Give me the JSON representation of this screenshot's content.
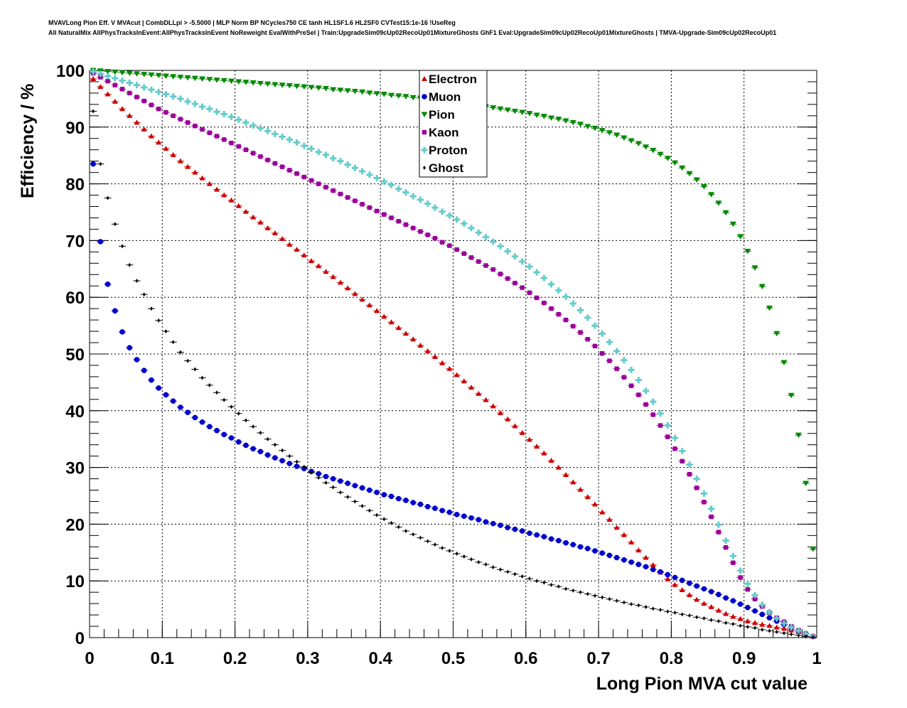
{
  "header": {
    "line1": "MVAVLong Pion Eff. V MVAcut | CombDLLpi > -5.5000 | MLP Norm BP NCycles750 CE tanh HL1SF1.6 HL2SF0 CVTest15:1e-16 !UseReg",
    "line2": "All NaturalMix AllPhysTracksInEvent:AllPhysTracksInEvent NoReweight EvalWithPreSel | Train:UpgradeSim09cUp02RecoUp01MixtureGhosts GhF1 Eval:UpgradeSim09cUp02RecoUp01MixtureGhosts | TMVA-Upgrade-Sim09cUp02RecoUp01"
  },
  "chart_data": {
    "type": "scatter",
    "title": "",
    "xlabel": "Long Pion MVA cut value",
    "ylabel": "Efficiency / %",
    "xlim": [
      0,
      1
    ],
    "ylim": [
      0,
      100
    ],
    "xticks": [
      "0",
      "0.1",
      "0.2",
      "0.3",
      "0.4",
      "0.5",
      "0.6",
      "0.7",
      "0.8",
      "0.9",
      "1"
    ],
    "yticks": [
      "0",
      "10",
      "20",
      "30",
      "40",
      "50",
      "60",
      "70",
      "80",
      "90",
      "100"
    ],
    "grid": true,
    "legend_position": "top-center",
    "x": [
      0.005,
      0.015,
      0.025,
      0.035,
      0.045,
      0.055,
      0.065,
      0.075,
      0.085,
      0.095,
      0.105,
      0.115,
      0.125,
      0.135,
      0.145,
      0.155,
      0.165,
      0.175,
      0.185,
      0.195,
      0.205,
      0.215,
      0.225,
      0.235,
      0.245,
      0.255,
      0.265,
      0.275,
      0.285,
      0.295,
      0.305,
      0.315,
      0.325,
      0.335,
      0.345,
      0.355,
      0.365,
      0.375,
      0.385,
      0.395,
      0.405,
      0.415,
      0.425,
      0.435,
      0.445,
      0.455,
      0.465,
      0.475,
      0.485,
      0.495,
      0.505,
      0.515,
      0.525,
      0.535,
      0.545,
      0.555,
      0.565,
      0.575,
      0.585,
      0.595,
      0.605,
      0.615,
      0.625,
      0.635,
      0.645,
      0.655,
      0.665,
      0.675,
      0.685,
      0.695,
      0.705,
      0.715,
      0.725,
      0.735,
      0.745,
      0.755,
      0.765,
      0.775,
      0.785,
      0.795,
      0.805,
      0.815,
      0.825,
      0.835,
      0.845,
      0.855,
      0.865,
      0.875,
      0.885,
      0.895,
      0.905,
      0.915,
      0.925,
      0.935,
      0.945,
      0.955,
      0.965,
      0.975,
      0.985,
      0.995
    ],
    "series": [
      {
        "name": "Electron",
        "marker": "triangle-up",
        "color": "#cc0000",
        "values": [
          98.5,
          97.1,
          95.8,
          94.5,
          93.2,
          92.0,
          90.8,
          89.6,
          88.4,
          87.3,
          86.2,
          85.1,
          84.0,
          83.0,
          82.0,
          81.0,
          80.0,
          79.0,
          78.0,
          77.1,
          76.1,
          75.1,
          74.1,
          73.2,
          72.2,
          71.3,
          70.3,
          69.3,
          68.4,
          67.4,
          66.4,
          65.5,
          64.5,
          63.6,
          62.6,
          61.6,
          60.6,
          59.6,
          58.6,
          57.6,
          56.6,
          55.6,
          54.6,
          53.6,
          52.6,
          51.5,
          50.5,
          49.5,
          48.4,
          47.4,
          46.3,
          45.2,
          44.1,
          43.0,
          41.9,
          40.8,
          39.6,
          38.5,
          37.3,
          36.1,
          34.9,
          33.7,
          32.5,
          31.2,
          30.0,
          28.7,
          27.4,
          26.1,
          24.8,
          23.5,
          22.1,
          20.8,
          19.4,
          18.1,
          16.8,
          15.4,
          14.1,
          12.8,
          11.5,
          10.3,
          9.3,
          8.4,
          7.5,
          6.7,
          6.0,
          5.4,
          4.8,
          4.2,
          3.7,
          3.3,
          2.9,
          2.6,
          2.3,
          2.1,
          1.8,
          1.6,
          1.3,
          1.0,
          0.6,
          0.2
        ]
      },
      {
        "name": "Muon",
        "marker": "circle",
        "color": "#0000cc",
        "values": [
          83.5,
          69.8,
          62.3,
          57.6,
          53.9,
          51.1,
          49.0,
          47.1,
          45.4,
          44.0,
          42.8,
          41.7,
          40.6,
          39.7,
          38.8,
          38.0,
          37.2,
          36.5,
          35.8,
          35.2,
          34.5,
          33.9,
          33.3,
          32.8,
          32.2,
          31.7,
          31.2,
          30.7,
          30.2,
          29.8,
          29.3,
          28.9,
          28.4,
          28.0,
          27.6,
          27.2,
          26.8,
          26.4,
          26.0,
          25.6,
          25.2,
          24.9,
          24.5,
          24.2,
          23.8,
          23.5,
          23.1,
          22.8,
          22.4,
          22.1,
          21.7,
          21.4,
          21.1,
          20.8,
          20.4,
          20.1,
          19.8,
          19.4,
          19.1,
          18.8,
          18.4,
          18.1,
          17.8,
          17.4,
          17.1,
          16.7,
          16.4,
          16.0,
          15.7,
          15.3,
          14.9,
          14.5,
          14.1,
          13.7,
          13.3,
          12.9,
          12.5,
          12.0,
          11.6,
          11.1,
          10.6,
          10.1,
          9.6,
          9.1,
          8.6,
          8.1,
          7.6,
          7.0,
          6.5,
          5.9,
          5.3,
          4.7,
          4.1,
          3.5,
          2.9,
          2.3,
          1.7,
          1.2,
          0.7,
          0.2
        ]
      },
      {
        "name": "Pion",
        "marker": "triangle-down",
        "color": "#008800",
        "values": [
          100.0,
          99.9,
          99.8,
          99.7,
          99.6,
          99.5,
          99.4,
          99.3,
          99.2,
          99.1,
          99.0,
          98.9,
          98.8,
          98.7,
          98.6,
          98.5,
          98.4,
          98.3,
          98.2,
          98.1,
          98.0,
          97.9,
          97.8,
          97.7,
          97.6,
          97.5,
          97.4,
          97.3,
          97.2,
          97.1,
          97.0,
          96.9,
          96.8,
          96.6,
          96.5,
          96.4,
          96.3,
          96.2,
          96.0,
          95.9,
          95.8,
          95.6,
          95.5,
          95.4,
          95.2,
          95.1,
          94.9,
          94.8,
          94.6,
          94.5,
          94.3,
          94.1,
          94.0,
          93.8,
          93.6,
          93.4,
          93.2,
          93.0,
          92.8,
          92.6,
          92.4,
          92.1,
          91.9,
          91.6,
          91.4,
          91.1,
          90.8,
          90.5,
          90.1,
          89.8,
          89.4,
          89.0,
          88.6,
          88.1,
          87.6,
          87.1,
          86.5,
          85.9,
          85.2,
          84.5,
          83.7,
          82.8,
          81.8,
          80.7,
          79.5,
          78.1,
          76.6,
          74.9,
          72.9,
          70.7,
          68.1,
          65.2,
          61.9,
          58.1,
          53.6,
          48.5,
          42.7,
          35.7,
          27.2,
          15.6
        ]
      },
      {
        "name": "Kaon",
        "marker": "square",
        "color": "#990099",
        "values": [
          99.5,
          98.8,
          98.1,
          97.4,
          96.7,
          96.0,
          95.3,
          94.6,
          93.9,
          93.2,
          92.6,
          92.0,
          91.4,
          90.8,
          90.2,
          89.6,
          89.0,
          88.4,
          87.8,
          87.2,
          86.6,
          86.0,
          85.4,
          84.8,
          84.2,
          83.6,
          83.0,
          82.4,
          81.8,
          81.2,
          80.6,
          80.0,
          79.4,
          78.8,
          78.2,
          77.6,
          77.0,
          76.4,
          75.8,
          75.2,
          74.6,
          74.0,
          73.4,
          72.8,
          72.2,
          71.6,
          71.0,
          70.4,
          69.7,
          69.1,
          68.4,
          67.7,
          67.0,
          66.3,
          65.6,
          64.9,
          64.1,
          63.3,
          62.5,
          61.7,
          60.8,
          59.9,
          59.0,
          58.0,
          57.0,
          56.0,
          54.9,
          53.8,
          52.6,
          51.4,
          50.1,
          48.8,
          47.4,
          45.9,
          44.4,
          42.8,
          41.1,
          39.3,
          37.4,
          35.4,
          33.3,
          31.1,
          28.8,
          26.4,
          23.9,
          21.3,
          18.6,
          15.9,
          13.2,
          10.6,
          8.5,
          6.8,
          5.5,
          4.4,
          3.5,
          2.8,
          2.0,
          1.3,
          0.7,
          0.2
        ]
      },
      {
        "name": "Proton",
        "marker": "cross",
        "color": "#66cccc",
        "values": [
          99.8,
          99.4,
          99.0,
          98.6,
          98.2,
          97.8,
          97.4,
          97.0,
          96.6,
          96.2,
          95.8,
          95.4,
          95.0,
          94.5,
          94.1,
          93.6,
          93.2,
          92.7,
          92.3,
          91.8,
          91.3,
          90.8,
          90.3,
          89.8,
          89.3,
          88.8,
          88.3,
          87.8,
          87.3,
          86.7,
          86.2,
          85.6,
          85.1,
          84.5,
          84.0,
          83.4,
          82.8,
          82.2,
          81.6,
          81.0,
          80.4,
          79.8,
          79.1,
          78.5,
          77.8,
          77.2,
          76.5,
          75.8,
          75.1,
          74.4,
          73.7,
          73.0,
          72.2,
          71.4,
          70.6,
          69.8,
          69.0,
          68.1,
          67.2,
          66.3,
          65.4,
          64.4,
          63.4,
          62.3,
          61.2,
          60.1,
          58.9,
          57.7,
          56.4,
          55.0,
          53.6,
          52.1,
          50.5,
          48.9,
          47.2,
          45.4,
          43.5,
          41.6,
          39.5,
          37.4,
          35.2,
          32.9,
          30.5,
          28.0,
          25.4,
          22.7,
          19.9,
          17.1,
          14.4,
          11.8,
          9.5,
          7.5,
          5.8,
          4.5,
          3.4,
          2.5,
          1.8,
          1.2,
          0.7,
          0.2
        ]
      },
      {
        "name": "Ghost",
        "marker": "diamond",
        "color": "#000000",
        "values": [
          92.8,
          83.5,
          77.5,
          72.9,
          69.0,
          65.7,
          62.9,
          60.5,
          58.0,
          55.9,
          54.0,
          52.1,
          50.3,
          48.8,
          47.3,
          45.8,
          44.5,
          43.2,
          41.9,
          40.7,
          39.5,
          38.3,
          37.2,
          36.1,
          35.0,
          34.0,
          33.0,
          32.0,
          31.0,
          30.1,
          29.1,
          28.2,
          27.3,
          26.5,
          25.6,
          24.8,
          24.0,
          23.2,
          22.4,
          21.6,
          20.9,
          20.2,
          19.5,
          18.8,
          18.2,
          17.6,
          17.0,
          16.4,
          15.8,
          15.3,
          14.8,
          14.3,
          13.8,
          13.3,
          12.9,
          12.4,
          12.0,
          11.6,
          11.2,
          10.8,
          10.4,
          10.0,
          9.7,
          9.3,
          9.0,
          8.6,
          8.3,
          8.0,
          7.7,
          7.4,
          7.1,
          6.8,
          6.5,
          6.2,
          5.9,
          5.7,
          5.4,
          5.1,
          4.9,
          4.6,
          4.4,
          4.1,
          3.9,
          3.6,
          3.4,
          3.1,
          2.9,
          2.6,
          2.4,
          2.1,
          1.9,
          1.7,
          1.4,
          1.2,
          1.0,
          0.8,
          0.6,
          0.4,
          0.2,
          0.1
        ]
      }
    ]
  }
}
